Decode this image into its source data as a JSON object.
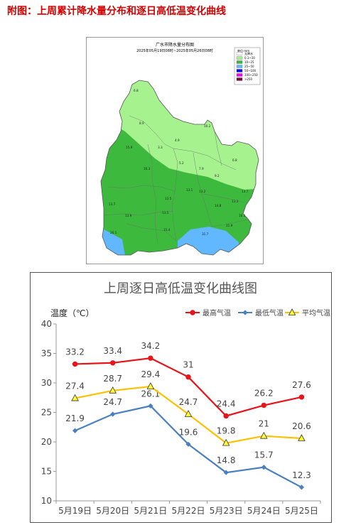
{
  "page": {
    "heading": "附图：上周累计降水量分布和逐日高低温变化曲线"
  },
  "map": {
    "title": "广水市降水量分布图",
    "subtitle": "2025年05月19日08时~2025年05月26日08时",
    "legend_title": "单位:mm",
    "legend": [
      {
        "label": "无降水",
        "color": "#ffffff"
      },
      {
        "label": "0.1~10",
        "color": "#a6f28f"
      },
      {
        "label": "10~25",
        "color": "#3dba3d"
      },
      {
        "label": "25~50",
        "color": "#61b8ff"
      },
      {
        "label": "50~100",
        "color": "#0000ff"
      },
      {
        "label": "100~250",
        "color": "#fa00fa"
      },
      {
        "label": ">250",
        "color": "#800040"
      }
    ],
    "stations": [
      {
        "value": "6.8"
      },
      {
        "value": "8.9"
      },
      {
        "value": "4.9"
      },
      {
        "value": "3.3"
      },
      {
        "value": "10.2"
      },
      {
        "value": "15.9"
      },
      {
        "value": "16.3"
      },
      {
        "value": "5.2"
      },
      {
        "value": "7.9"
      },
      {
        "value": "6.8"
      },
      {
        "value": "9.2"
      },
      {
        "value": "13.1"
      },
      {
        "value": "13.2"
      },
      {
        "value": "13.5"
      },
      {
        "value": "13.7"
      },
      {
        "value": "14.8"
      },
      {
        "value": "13.7"
      },
      {
        "value": "13.9"
      },
      {
        "value": "13.5"
      },
      {
        "value": "16.3"
      },
      {
        "value": "13.3"
      },
      {
        "value": "15.4"
      },
      {
        "value": "21.9"
      },
      {
        "value": "26.1"
      },
      {
        "value": "31.7"
      }
    ]
  },
  "chart_data": {
    "type": "line",
    "title": "上周逐日高低温变化曲线图",
    "ylabel": "温度（℃）",
    "ylim": [
      10,
      40
    ],
    "yticks": [
      10,
      15,
      20,
      25,
      30,
      35,
      40
    ],
    "categories": [
      "5月19日",
      "5月20日",
      "5月21日",
      "5月22日",
      "5月23日",
      "5月24日",
      "5月25日"
    ],
    "legend_position": "top-right",
    "series": [
      {
        "name": "最高气温",
        "color": "#e8141a",
        "marker": "circle",
        "values": [
          33.2,
          33.4,
          34.2,
          31,
          24.4,
          26.2,
          27.6
        ]
      },
      {
        "name": "最低气温",
        "color": "#4a7fc1",
        "marker": "diamond",
        "values": [
          21.9,
          24.7,
          26.1,
          19.6,
          14.8,
          15.7,
          12.3
        ]
      },
      {
        "name": "平均气温",
        "color": "#ffc000",
        "marker": "triangle",
        "values": [
          27.4,
          28.7,
          29.4,
          24.7,
          19.8,
          21,
          20.6
        ]
      }
    ]
  }
}
